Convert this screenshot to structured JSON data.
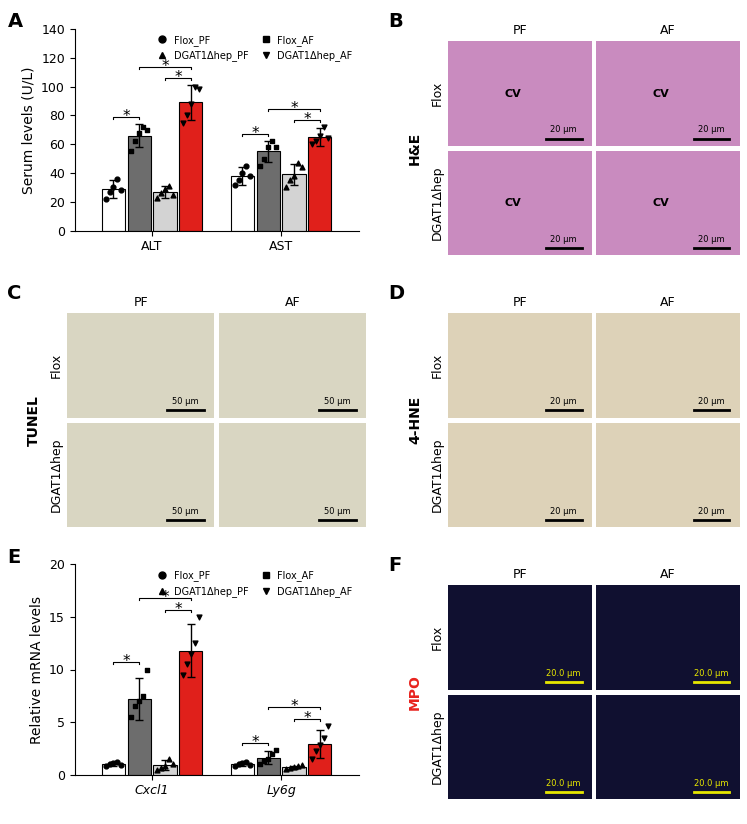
{
  "chart_data": [
    {
      "panel": "A",
      "type": "bar",
      "y_label": "Serum levels (U/L)",
      "categories": [
        "ALT",
        "AST"
      ],
      "ylim": [
        0,
        140
      ],
      "yticks": [
        0,
        20,
        40,
        60,
        80,
        100,
        120,
        140
      ],
      "legend": "upper right",
      "significance_label": "*",
      "comparisons": [
        [
          "Flox_PF",
          "Flox_AF"
        ],
        [
          "DGAT1Δhep_PF",
          "DGAT1Δhep_AF"
        ],
        [
          "Flox_AF",
          "DGAT1Δhep_AF"
        ]
      ],
      "series": [
        {
          "name": "Flox_PF",
          "color": "#ffffff",
          "marker": "circle",
          "values": [
            29,
            38
          ],
          "errors": [
            6,
            6
          ],
          "points": [
            [
              22,
              27,
              30,
              36,
              28
            ],
            [
              32,
              35,
              40,
              45,
              38
            ]
          ]
        },
        {
          "name": "Flox_AF",
          "color": "#6d6d6d",
          "marker": "square",
          "values": [
            66,
            55
          ],
          "errors": [
            8,
            7
          ],
          "points": [
            [
              55,
              62,
              68,
              72,
              70
            ],
            [
              45,
              50,
              58,
              62,
              58
            ]
          ]
        },
        {
          "name": "DGAT1Δhep_PF",
          "color": "#d3d3d3",
          "marker": "triangle_up",
          "values": [
            27,
            39
          ],
          "errors": [
            4,
            7
          ],
          "points": [
            [
              23,
              26,
              29,
              31,
              25
            ],
            [
              30,
              35,
              38,
              47,
              44
            ]
          ]
        },
        {
          "name": "DGAT1Δhep_AF",
          "color": "#e0201b",
          "marker": "triangle_down",
          "values": [
            89,
            65
          ],
          "errors": [
            12,
            6
          ],
          "points": [
            [
              75,
              80,
              88,
              100,
              98
            ],
            [
              60,
              62,
              66,
              72,
              64
            ]
          ]
        }
      ]
    },
    {
      "panel": "E",
      "type": "bar",
      "y_label": "Relative mRNA levels",
      "categories": [
        "Cxcl1",
        "Ly6g"
      ],
      "ylim": [
        0,
        20
      ],
      "yticks": [
        0,
        5,
        10,
        15,
        20
      ],
      "legend": "upper right",
      "significance_label": "*",
      "comparisons": [
        [
          "Flox_PF",
          "Flox_AF"
        ],
        [
          "DGAT1Δhep_PF",
          "DGAT1Δhep_AF"
        ],
        [
          "Flox_AF",
          "DGAT1Δhep_AF"
        ]
      ],
      "series": [
        {
          "name": "Flox_PF",
          "color": "#ffffff",
          "marker": "circle",
          "values": [
            1.0,
            1.0
          ],
          "errors": [
            0.2,
            0.2
          ],
          "points": [
            [
              0.8,
              1.0,
              1.1,
              1.2,
              0.9
            ],
            [
              0.8,
              1.0,
              1.1,
              1.2,
              0.9
            ]
          ]
        },
        {
          "name": "Flox_AF",
          "color": "#6d6d6d",
          "marker": "square",
          "values": [
            7.2,
            1.6
          ],
          "errors": [
            2.0,
            0.6
          ],
          "points": [
            [
              5.5,
              6.5,
              7.0,
              7.5,
              10.0
            ],
            [
              1.0,
              1.3,
              1.5,
              2.0,
              2.3
            ]
          ]
        },
        {
          "name": "DGAT1Δhep_PF",
          "color": "#d3d3d3",
          "marker": "triangle_up",
          "values": [
            0.9,
            0.7
          ],
          "errors": [
            0.5,
            0.15
          ],
          "points": [
            [
              0.4,
              0.6,
              0.8,
              1.5,
              1.0
            ],
            [
              0.5,
              0.6,
              0.7,
              0.8,
              0.9
            ]
          ]
        },
        {
          "name": "DGAT1Δhep_AF",
          "color": "#e0201b",
          "marker": "triangle_down",
          "values": [
            11.8,
            2.9
          ],
          "errors": [
            2.5,
            1.3
          ],
          "points": [
            [
              9.5,
              10.5,
              11.5,
              12.5,
              15.0
            ],
            [
              1.5,
              2.2,
              2.8,
              3.5,
              4.6
            ]
          ]
        }
      ]
    }
  ],
  "image_panels": [
    {
      "panel": "B",
      "stain": "H&E",
      "columns": [
        "PF",
        "AF"
      ],
      "rows": [
        "Flox",
        "DGAT1Δhep"
      ],
      "scale_bar": "20 μm",
      "annotation": "CV"
    },
    {
      "panel": "C",
      "stain": "TUNEL",
      "columns": [
        "PF",
        "AF"
      ],
      "rows": [
        "Flox",
        "DGAT1Δhep"
      ],
      "scale_bar": "50 μm"
    },
    {
      "panel": "D",
      "stain": "4-HNE",
      "columns": [
        "PF",
        "AF"
      ],
      "rows": [
        "Flox",
        "DGAT1Δhep"
      ],
      "scale_bar": "20 μm"
    },
    {
      "panel": "F",
      "stain": "MPO",
      "color": "#e8231e",
      "columns": [
        "PF",
        "AF"
      ],
      "rows": [
        "Flox",
        "DGAT1Δhep"
      ],
      "scale_bar": "20.0 μm"
    }
  ]
}
